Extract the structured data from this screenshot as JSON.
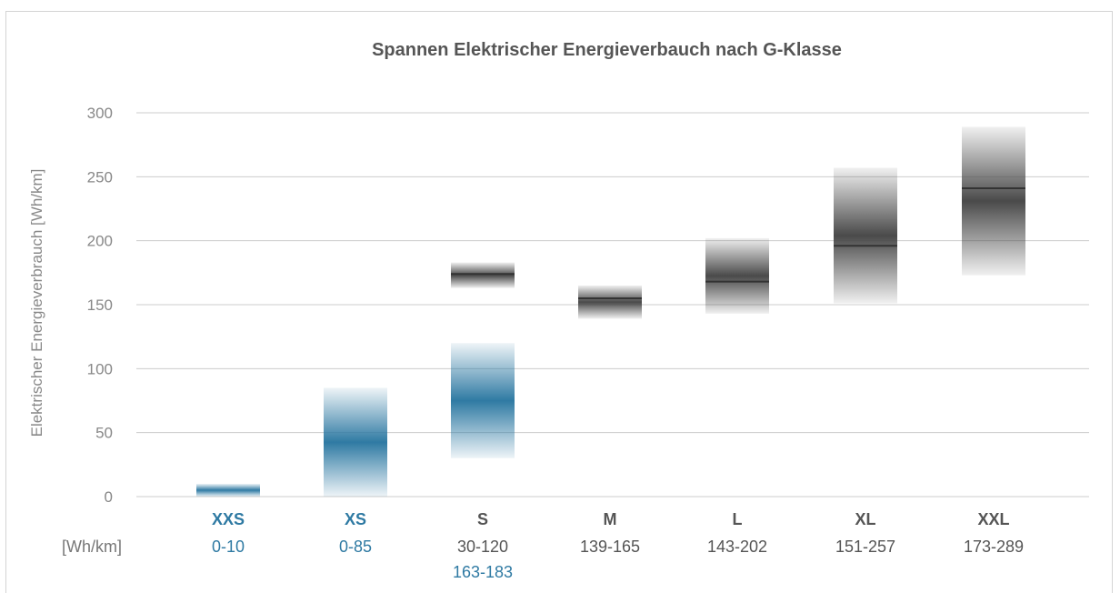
{
  "chart_data": {
    "type": "bar",
    "title": "Spannen Elektrischer Energieverbauch nach G-Klasse",
    "xlabel": "",
    "ylabel": "Elektrischer Energieverbrauch [Wh/km]",
    "ylim": [
      0,
      300
    ],
    "yticks": [
      "0",
      "50",
      "100",
      "150",
      "200",
      "250",
      "300"
    ],
    "unit_label": "[Wh/km]",
    "grid": true,
    "categories": [
      "XXS",
      "XS",
      "S",
      "M",
      "L",
      "XL",
      "XXL"
    ],
    "series": [
      {
        "group": "blue",
        "ranges": [
          {
            "category": "XXS",
            "min": 0,
            "max": 10,
            "label": "0-10"
          },
          {
            "category": "XS",
            "min": 0,
            "max": 85,
            "label": "0-85"
          },
          {
            "category": "S",
            "min": 30,
            "max": 120,
            "label": "30-120"
          }
        ]
      },
      {
        "group": "gray",
        "ranges": [
          {
            "category": "S",
            "min": 163,
            "max": 183,
            "median": 174,
            "label": "163-183"
          },
          {
            "category": "M",
            "min": 139,
            "max": 165,
            "median": 155,
            "label": "139-165"
          },
          {
            "category": "L",
            "min": 143,
            "max": 202,
            "median": 168,
            "label": "143-202"
          },
          {
            "category": "XL",
            "min": 151,
            "max": 257,
            "median": 196,
            "label": "151-257"
          },
          {
            "category": "XXL",
            "min": 173,
            "max": 289,
            "median": 241,
            "label": "173-289"
          }
        ]
      }
    ],
    "colors": {
      "blue": "#2f7aa3",
      "gray": "#4a4a4a",
      "grid": "#cccccc",
      "axis_text": "#888888"
    }
  }
}
